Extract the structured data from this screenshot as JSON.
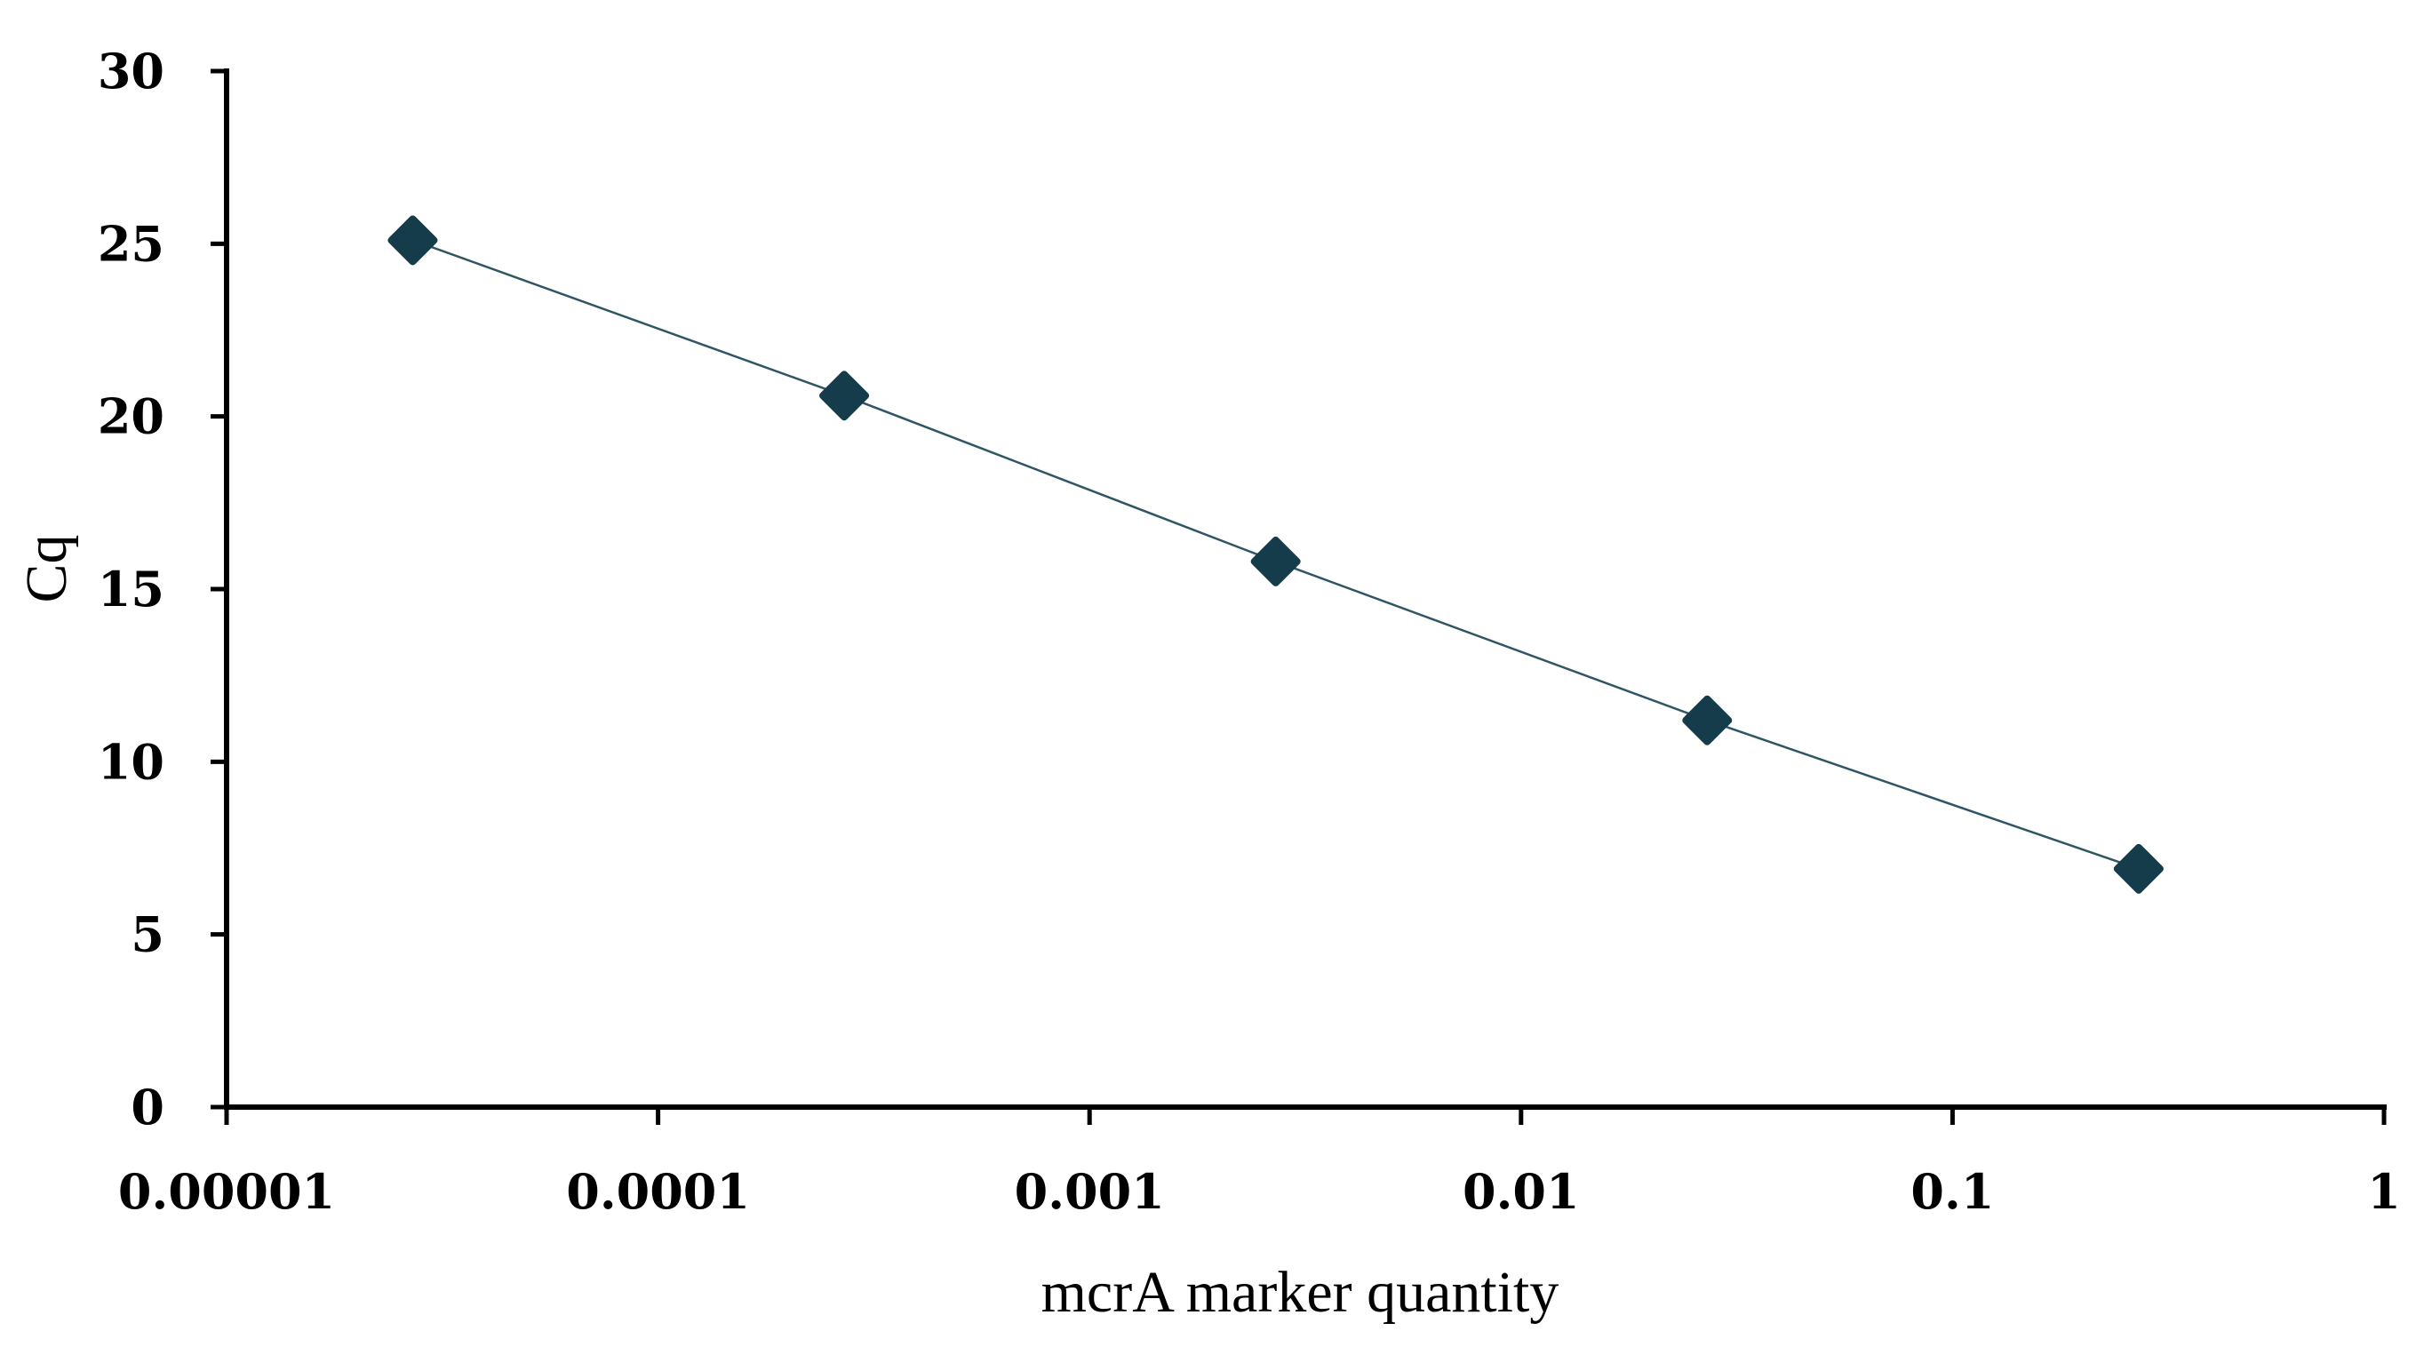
{
  "chart_data": {
    "type": "scatter",
    "title": "",
    "xlabel": "mcrA marker quantity",
    "ylabel": "Cq",
    "x_scale": "log",
    "xlim": [
      1e-05,
      1
    ],
    "ylim": [
      0,
      30
    ],
    "x_ticks": [
      1e-05,
      0.0001,
      0.001,
      0.01,
      0.1,
      1
    ],
    "x_tick_labels": [
      "0.00001",
      "0.0001",
      "0.001",
      "0.01",
      "0.1",
      "1"
    ],
    "y_ticks": [
      0,
      5,
      10,
      15,
      20,
      25,
      30
    ],
    "y_tick_labels": [
      "0",
      "5",
      "10",
      "15",
      "20",
      "25",
      "30"
    ],
    "grid": false,
    "legend": "none",
    "series": [
      {
        "marker": "diamond",
        "color": "#153c4a",
        "line_color": "#2e5664",
        "points": [
          {
            "x": 2.7e-05,
            "y": 25.1
          },
          {
            "x": 0.00027,
            "y": 20.6
          },
          {
            "x": 0.0027,
            "y": 15.8
          },
          {
            "x": 0.027,
            "y": 11.2
          },
          {
            "x": 0.27,
            "y": 6.9
          }
        ]
      }
    ]
  }
}
